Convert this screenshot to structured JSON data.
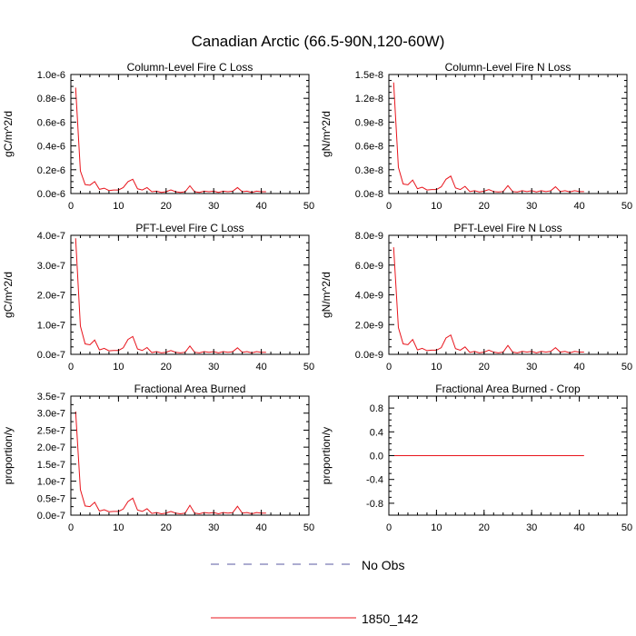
{
  "title": "Canadian Arctic (66.5-90N,120-60W)",
  "colors": {
    "series_line": "#e8141c",
    "obs_line": "#5a5aa0",
    "axis": "#000000",
    "background": "#ffffff"
  },
  "legend": {
    "placement": "bottom-center",
    "entries": [
      {
        "label": "No Obs",
        "style": "dashed",
        "color": "#5a5aa0"
      },
      {
        "label": "1850_142",
        "style": "solid",
        "color": "#e8141c"
      }
    ]
  },
  "chart_data": [
    {
      "type": "line",
      "title": "Column-Level Fire C Loss",
      "ylabel": "gC/m^2/d",
      "xlabel": "",
      "xlim": [
        0,
        50
      ],
      "ylim": [
        0,
        1e-06
      ],
      "x_ticks": [
        0,
        10,
        20,
        30,
        40,
        50
      ],
      "x_tick_labels": [
        "0",
        "10",
        "20",
        "30",
        "40",
        "50"
      ],
      "y_ticks": [
        0,
        2e-07,
        4e-07,
        6e-07,
        8e-07,
        1e-06
      ],
      "y_tick_labels": [
        "0.0e-6",
        "0.2e-6",
        "0.4e-6",
        "0.6e-6",
        "0.8e-6",
        "1.0e-6"
      ],
      "grid": false,
      "series": [
        {
          "name": "1850_142",
          "x": [
            1,
            2,
            3,
            4,
            5,
            6,
            7,
            8,
            9,
            10,
            11,
            12,
            13,
            14,
            15,
            16,
            17,
            18,
            19,
            20,
            21,
            22,
            23,
            24,
            25,
            26,
            27,
            28,
            29,
            30,
            31,
            32,
            33,
            34,
            35,
            36,
            37,
            38,
            39,
            40,
            41
          ],
          "values": [
            8.9e-07,
            1.9e-07,
            7.5e-08,
            7e-08,
            1e-07,
            3.5e-08,
            4.5e-08,
            2.5e-08,
            3e-08,
            3e-08,
            5e-08,
            1e-07,
            1.2e-07,
            4e-08,
            3e-08,
            5e-08,
            1.5e-08,
            2e-08,
            1e-08,
            1.5e-08,
            3e-08,
            1.5e-08,
            1e-08,
            1.5e-08,
            6.5e-08,
            1.5e-08,
            1e-08,
            2e-08,
            1.5e-08,
            2e-08,
            1e-08,
            2e-08,
            1.5e-08,
            2e-08,
            5e-08,
            1.5e-08,
            2e-08,
            1e-08,
            2e-08,
            1.5e-08,
            1.5e-08
          ]
        }
      ]
    },
    {
      "type": "line",
      "title": "Column-Level Fire N Loss",
      "ylabel": "gN/m^2/d",
      "xlabel": "",
      "xlim": [
        0,
        50
      ],
      "ylim": [
        0,
        1.5e-08
      ],
      "x_ticks": [
        0,
        10,
        20,
        30,
        40,
        50
      ],
      "x_tick_labels": [
        "0",
        "10",
        "20",
        "30",
        "40",
        "50"
      ],
      "y_ticks": [
        0,
        3e-09,
        6e-09,
        9e-09,
        1.2e-08,
        1.5e-08
      ],
      "y_tick_labels": [
        "0.0e-8",
        "0.3e-8",
        "0.6e-8",
        "0.9e-8",
        "1.2e-8",
        "1.5e-8"
      ],
      "grid": false,
      "series": [
        {
          "name": "1850_142",
          "x": [
            1,
            2,
            3,
            4,
            5,
            6,
            7,
            8,
            9,
            10,
            11,
            12,
            13,
            14,
            15,
            16,
            17,
            18,
            19,
            20,
            21,
            22,
            23,
            24,
            25,
            26,
            27,
            28,
            29,
            30,
            31,
            32,
            33,
            34,
            35,
            36,
            37,
            38,
            39,
            40,
            41
          ],
          "values": [
            1.4e-08,
            3.3e-09,
            1.2e-09,
            1.1e-09,
            1.7e-09,
            6e-10,
            8e-10,
            4.5e-10,
            5e-10,
            5e-10,
            8.5e-10,
            1.8e-09,
            2.2e-09,
            7e-10,
            5e-10,
            9e-10,
            2.5e-10,
            3.5e-10,
            2e-10,
            3e-10,
            5e-10,
            2.5e-10,
            2e-10,
            2.5e-10,
            1e-09,
            2.5e-10,
            2e-10,
            3.5e-10,
            2.5e-10,
            3.5e-10,
            2e-10,
            3.5e-10,
            2.5e-10,
            3.5e-10,
            8.5e-10,
            2.5e-10,
            3.5e-10,
            2e-10,
            3.5e-10,
            2.5e-10,
            2.5e-10
          ]
        }
      ]
    },
    {
      "type": "line",
      "title": "PFT-Level Fire C Loss",
      "ylabel": "gC/m^2/d",
      "xlabel": "",
      "xlim": [
        0,
        50
      ],
      "ylim": [
        0,
        4e-07
      ],
      "x_ticks": [
        0,
        10,
        20,
        30,
        40,
        50
      ],
      "x_tick_labels": [
        "0",
        "10",
        "20",
        "30",
        "40",
        "50"
      ],
      "y_ticks": [
        0,
        1e-07,
        2e-07,
        3e-07,
        4e-07
      ],
      "y_tick_labels": [
        "0.0e-7",
        "1.0e-7",
        "2.0e-7",
        "3.0e-7",
        "4.0e-7"
      ],
      "grid": false,
      "series": [
        {
          "name": "1850_142",
          "x": [
            1,
            2,
            3,
            4,
            5,
            6,
            7,
            8,
            9,
            10,
            11,
            12,
            13,
            14,
            15,
            16,
            17,
            18,
            19,
            20,
            21,
            22,
            23,
            24,
            25,
            26,
            27,
            28,
            29,
            30,
            31,
            32,
            33,
            34,
            35,
            36,
            37,
            38,
            39,
            40,
            41
          ],
          "values": [
            3.9e-07,
            9.5e-08,
            3.5e-08,
            3.2e-08,
            4.8e-08,
            1.5e-08,
            2e-08,
            1.2e-08,
            1.3e-08,
            1.3e-08,
            2.2e-08,
            5e-08,
            6e-08,
            1.8e-08,
            1.3e-08,
            2.3e-08,
            6e-09,
            9e-09,
            5e-09,
            7e-09,
            1.3e-08,
            7e-09,
            5e-09,
            7e-09,
            2.8e-08,
            7e-09,
            5e-09,
            9e-09,
            7e-09,
            9e-09,
            5e-09,
            9e-09,
            7e-09,
            9e-09,
            2.2e-08,
            7e-09,
            9e-09,
            5e-09,
            9e-09,
            7e-09,
            7e-09
          ]
        }
      ]
    },
    {
      "type": "line",
      "title": "PFT-Level Fire N Loss",
      "ylabel": "gN/m^2/d",
      "xlabel": "",
      "xlim": [
        0,
        50
      ],
      "ylim": [
        0,
        8e-09
      ],
      "x_ticks": [
        0,
        10,
        20,
        30,
        40,
        50
      ],
      "x_tick_labels": [
        "0",
        "10",
        "20",
        "30",
        "40",
        "50"
      ],
      "y_ticks": [
        0,
        2e-09,
        4e-09,
        6e-09,
        8e-09
      ],
      "y_tick_labels": [
        "0.0e-9",
        "2.0e-9",
        "4.0e-9",
        "6.0e-9",
        "8.0e-9"
      ],
      "grid": false,
      "series": [
        {
          "name": "1850_142",
          "x": [
            1,
            2,
            3,
            4,
            5,
            6,
            7,
            8,
            9,
            10,
            11,
            12,
            13,
            14,
            15,
            16,
            17,
            18,
            19,
            20,
            21,
            22,
            23,
            24,
            25,
            26,
            27,
            28,
            29,
            30,
            31,
            32,
            33,
            34,
            35,
            36,
            37,
            38,
            39,
            40,
            41
          ],
          "values": [
            7.2e-09,
            1.8e-09,
            7e-10,
            6.5e-10,
            1e-09,
            3e-10,
            4e-10,
            2.5e-10,
            2.8e-10,
            2.8e-10,
            4.5e-10,
            1.1e-09,
            1.3e-09,
            3.8e-10,
            2.8e-10,
            5e-10,
            1.3e-10,
            2e-10,
            1e-10,
            1.5e-10,
            2.8e-10,
            1.5e-10,
            1e-10,
            1.5e-10,
            6e-10,
            1.5e-10,
            1e-10,
            2e-10,
            1.5e-10,
            2e-10,
            1e-10,
            2e-10,
            1.5e-10,
            2e-10,
            4.5e-10,
            1.5e-10,
            2e-10,
            1e-10,
            2e-10,
            1.5e-10,
            1.5e-10
          ]
        }
      ]
    },
    {
      "type": "line",
      "title": "Fractional Area Burned",
      "ylabel": "proportion/y",
      "xlabel": "",
      "xlim": [
        0,
        50
      ],
      "ylim": [
        0,
        3.5e-07
      ],
      "x_ticks": [
        0,
        10,
        20,
        30,
        40,
        50
      ],
      "x_tick_labels": [
        "0",
        "10",
        "20",
        "30",
        "40",
        "50"
      ],
      "y_ticks": [
        0,
        5e-08,
        1e-07,
        1.5e-07,
        2e-07,
        2.5e-07,
        3e-07,
        3.5e-07
      ],
      "y_tick_labels": [
        "0.0e-7",
        "0.5e-7",
        "1.0e-7",
        "1.5e-7",
        "2.0e-7",
        "2.5e-7",
        "3.0e-7",
        "3.5e-7"
      ],
      "grid": false,
      "series": [
        {
          "name": "1850_142",
          "x": [
            1,
            2,
            3,
            4,
            5,
            6,
            7,
            8,
            9,
            10,
            11,
            12,
            13,
            14,
            15,
            16,
            17,
            18,
            19,
            20,
            21,
            22,
            23,
            24,
            25,
            26,
            27,
            28,
            29,
            30,
            31,
            32,
            33,
            34,
            35,
            36,
            37,
            38,
            39,
            40,
            41
          ],
          "values": [
            3.05e-07,
            7.5e-08,
            2.7e-08,
            2.5e-08,
            3.8e-08,
            1.2e-08,
            1.6e-08,
            1e-08,
            1.1e-08,
            1.1e-08,
            1.8e-08,
            4e-08,
            5e-08,
            1.5e-08,
            1.1e-08,
            1.9e-08,
            5e-09,
            7.5e-09,
            4e-09,
            6e-09,
            1.1e-08,
            6e-09,
            4e-09,
            6e-09,
            2.9e-08,
            6e-09,
            4e-09,
            7.5e-09,
            6e-09,
            7.5e-09,
            4e-09,
            7.5e-09,
            6e-09,
            7.5e-09,
            2.6e-08,
            6e-09,
            7.5e-09,
            4e-09,
            7.5e-09,
            6e-09,
            6e-09
          ]
        }
      ]
    },
    {
      "type": "line",
      "title": "Fractional Area Burned - Crop",
      "ylabel": "proportion/y",
      "xlabel": "",
      "xlim": [
        0,
        50
      ],
      "ylim": [
        -1.0,
        1.0
      ],
      "x_ticks": [
        0,
        10,
        20,
        30,
        40,
        50
      ],
      "x_tick_labels": [
        "0",
        "10",
        "20",
        "30",
        "40",
        "50"
      ],
      "y_ticks": [
        -0.8,
        -0.4,
        0.0,
        0.4,
        0.8
      ],
      "y_tick_labels": [
        "-0.8",
        "-0.4",
        "0.0",
        "0.4",
        "0.8"
      ],
      "grid": false,
      "series": [
        {
          "name": "1850_142",
          "x": [
            1,
            2,
            3,
            4,
            5,
            6,
            7,
            8,
            9,
            10,
            11,
            12,
            13,
            14,
            15,
            16,
            17,
            18,
            19,
            20,
            21,
            22,
            23,
            24,
            25,
            26,
            27,
            28,
            29,
            30,
            31,
            32,
            33,
            34,
            35,
            36,
            37,
            38,
            39,
            40,
            41
          ],
          "values": [
            0,
            0,
            0,
            0,
            0,
            0,
            0,
            0,
            0,
            0,
            0,
            0,
            0,
            0,
            0,
            0,
            0,
            0,
            0,
            0,
            0,
            0,
            0,
            0,
            0,
            0,
            0,
            0,
            0,
            0,
            0,
            0,
            0,
            0,
            0,
            0,
            0,
            0,
            0,
            0,
            0
          ]
        }
      ]
    }
  ]
}
